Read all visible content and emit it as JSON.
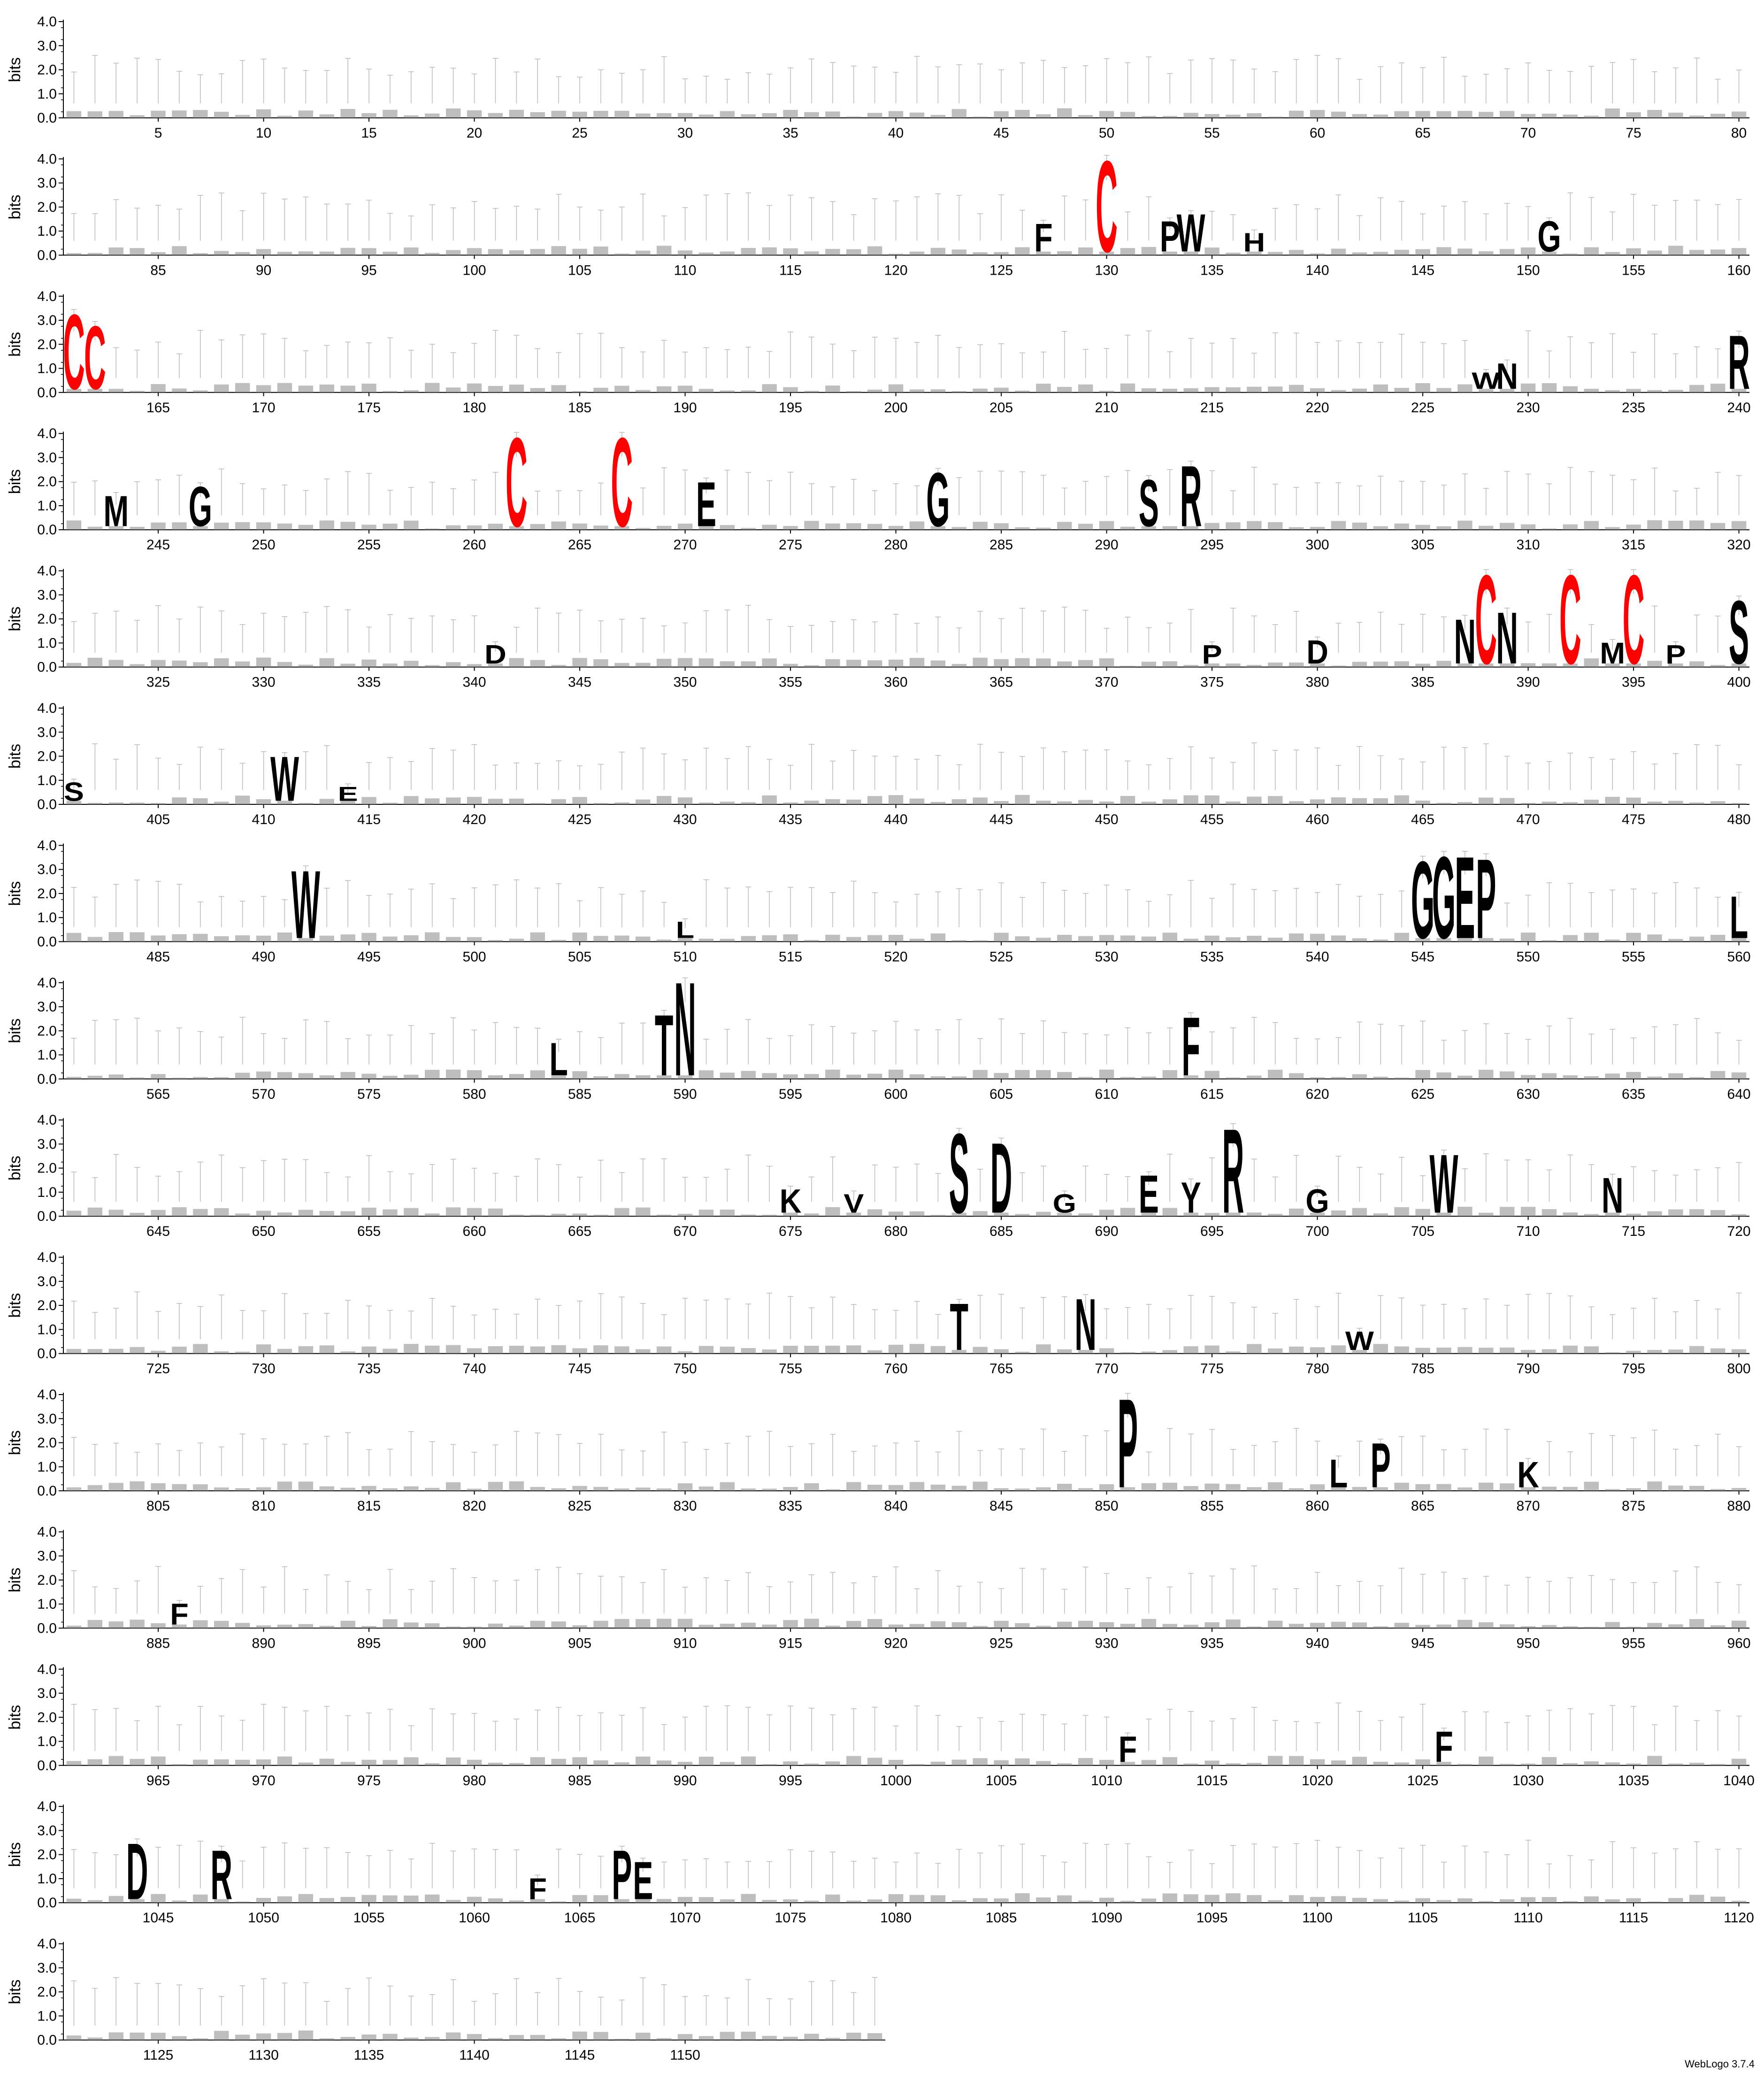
{
  "chart_data": {
    "type": "sequence-logo",
    "ylabel": "bits",
    "ylim": [
      0,
      4.0
    ],
    "yticks": [
      "0.0",
      "1.0",
      "2.0",
      "3.0",
      "4.0"
    ],
    "sequence_length": 1159,
    "positions_per_row": 80,
    "xtick_step": 5,
    "rows": [
      {
        "start": 1,
        "end": 80,
        "xticks": [
          5,
          10,
          15,
          20,
          25,
          30,
          35,
          40,
          45,
          50,
          55,
          60,
          65,
          70,
          75,
          80
        ]
      },
      {
        "start": 81,
        "end": 160,
        "xticks": [
          85,
          90,
          95,
          100,
          105,
          110,
          115,
          120,
          125,
          130,
          135,
          140,
          145,
          150,
          155,
          160
        ]
      },
      {
        "start": 161,
        "end": 240,
        "xticks": [
          165,
          170,
          175,
          180,
          185,
          190,
          195,
          200,
          205,
          210,
          215,
          220,
          225,
          230,
          235,
          240
        ]
      },
      {
        "start": 241,
        "end": 320,
        "xticks": [
          245,
          250,
          255,
          260,
          265,
          270,
          275,
          280,
          285,
          290,
          295,
          300,
          305,
          310,
          315,
          320
        ]
      },
      {
        "start": 321,
        "end": 400,
        "xticks": [
          325,
          330,
          335,
          340,
          345,
          350,
          355,
          360,
          365,
          370,
          375,
          380,
          385,
          390,
          395,
          400
        ]
      },
      {
        "start": 401,
        "end": 480,
        "xticks": [
          405,
          410,
          415,
          420,
          425,
          430,
          435,
          440,
          445,
          450,
          455,
          460,
          465,
          470,
          475,
          480
        ]
      },
      {
        "start": 481,
        "end": 560,
        "xticks": [
          485,
          490,
          495,
          500,
          505,
          510,
          515,
          520,
          525,
          530,
          535,
          540,
          545,
          550,
          555,
          560
        ]
      },
      {
        "start": 561,
        "end": 640,
        "xticks": [
          565,
          570,
          575,
          580,
          585,
          590,
          595,
          600,
          605,
          610,
          615,
          620,
          625,
          630,
          635,
          640
        ]
      },
      {
        "start": 641,
        "end": 720,
        "xticks": [
          645,
          650,
          655,
          660,
          665,
          670,
          675,
          680,
          685,
          690,
          695,
          700,
          705,
          710,
          715,
          720
        ]
      },
      {
        "start": 721,
        "end": 800,
        "xticks": [
          725,
          730,
          735,
          740,
          745,
          750,
          755,
          760,
          765,
          770,
          775,
          780,
          785,
          790,
          795,
          800
        ]
      },
      {
        "start": 801,
        "end": 880,
        "xticks": [
          805,
          810,
          815,
          820,
          825,
          830,
          835,
          840,
          845,
          850,
          855,
          860,
          865,
          870,
          875,
          880
        ]
      },
      {
        "start": 881,
        "end": 960,
        "xticks": [
          885,
          890,
          895,
          900,
          905,
          910,
          915,
          920,
          925,
          930,
          935,
          940,
          945,
          950,
          955,
          960
        ]
      },
      {
        "start": 961,
        "end": 1040,
        "xticks": [
          965,
          970,
          975,
          980,
          985,
          990,
          995,
          1000,
          1005,
          1010,
          1015,
          1020,
          1025,
          1030,
          1035,
          1040
        ]
      },
      {
        "start": 1041,
        "end": 1120,
        "xticks": [
          1045,
          1050,
          1055,
          1060,
          1065,
          1070,
          1075,
          1080,
          1085,
          1090,
          1095,
          1100,
          1105,
          1110,
          1115,
          1120
        ]
      },
      {
        "start": 1121,
        "end": 1159,
        "xticks": [
          1125,
          1130,
          1135,
          1140,
          1145,
          1150
        ]
      }
    ],
    "prominent_residues": [
      {
        "pos": 127,
        "letter": "F",
        "bits": 1.2,
        "color": "#000000"
      },
      {
        "pos": 130,
        "letter": "C",
        "bits": 3.9,
        "color": "#ff0000"
      },
      {
        "pos": 133,
        "letter": "P",
        "bits": 1.3,
        "color": "#000000"
      },
      {
        "pos": 134,
        "letter": "W",
        "bits": 1.6,
        "color": "#000000"
      },
      {
        "pos": 137,
        "letter": "H",
        "bits": 0.8,
        "color": "#000000"
      },
      {
        "pos": 151,
        "letter": "G",
        "bits": 1.3,
        "color": "#000000"
      },
      {
        "pos": 161,
        "letter": "C",
        "bits": 3.2,
        "color": "#ff0000"
      },
      {
        "pos": 162,
        "letter": "C",
        "bits": 2.7,
        "color": "#ff0000"
      },
      {
        "pos": 228,
        "letter": "W",
        "bits": 0.7,
        "color": "#000000"
      },
      {
        "pos": 229,
        "letter": "N",
        "bits": 1.1,
        "color": "#000000"
      },
      {
        "pos": 240,
        "letter": "R",
        "bits": 2.3,
        "color": "#000000"
      },
      {
        "pos": 243,
        "letter": "M",
        "bits": 1.3,
        "color": "#000000"
      },
      {
        "pos": 247,
        "letter": "G",
        "bits": 1.7,
        "color": "#000000"
      },
      {
        "pos": 262,
        "letter": "C",
        "bits": 3.8,
        "color": "#ff0000"
      },
      {
        "pos": 267,
        "letter": "C",
        "bits": 3.8,
        "color": "#ff0000"
      },
      {
        "pos": 271,
        "letter": "E",
        "bits": 1.9,
        "color": "#000000"
      },
      {
        "pos": 282,
        "letter": "G",
        "bits": 2.3,
        "color": "#000000"
      },
      {
        "pos": 292,
        "letter": "S",
        "bits": 2.0,
        "color": "#000000"
      },
      {
        "pos": 294,
        "letter": "R",
        "bits": 2.6,
        "color": "#000000"
      },
      {
        "pos": 341,
        "letter": "D",
        "bits": 0.8,
        "color": "#000000"
      },
      {
        "pos": 375,
        "letter": "P",
        "bits": 0.8,
        "color": "#000000"
      },
      {
        "pos": 380,
        "letter": "D",
        "bits": 1.0,
        "color": "#000000"
      },
      {
        "pos": 387,
        "letter": "N",
        "bits": 1.9,
        "color": "#000000"
      },
      {
        "pos": 388,
        "letter": "C",
        "bits": 3.8,
        "color": "#ff0000"
      },
      {
        "pos": 389,
        "letter": "N",
        "bits": 2.2,
        "color": "#000000"
      },
      {
        "pos": 392,
        "letter": "C",
        "bits": 3.8,
        "color": "#ff0000"
      },
      {
        "pos": 394,
        "letter": "M",
        "bits": 0.9,
        "color": "#000000"
      },
      {
        "pos": 395,
        "letter": "C",
        "bits": 3.8,
        "color": "#ff0000"
      },
      {
        "pos": 397,
        "letter": "P",
        "bits": 0.8,
        "color": "#000000"
      },
      {
        "pos": 400,
        "letter": "S",
        "bits": 2.7,
        "color": "#000000"
      },
      {
        "pos": 401,
        "letter": "S",
        "bits": 0.8,
        "color": "#000000"
      },
      {
        "pos": 411,
        "letter": "W",
        "bits": 1.9,
        "color": "#000000"
      },
      {
        "pos": 414,
        "letter": "E",
        "bits": 0.6,
        "color": "#000000"
      },
      {
        "pos": 492,
        "letter": "W",
        "bits": 2.9,
        "color": "#000000"
      },
      {
        "pos": 510,
        "letter": "L",
        "bits": 0.7,
        "color": "#000000"
      },
      {
        "pos": 545,
        "letter": "G",
        "bits": 3.3,
        "color": "#000000"
      },
      {
        "pos": 546,
        "letter": "G",
        "bits": 3.5,
        "color": "#000000"
      },
      {
        "pos": 547,
        "letter": "E",
        "bits": 3.5,
        "color": "#000000"
      },
      {
        "pos": 548,
        "letter": "P",
        "bits": 3.4,
        "color": "#000000"
      },
      {
        "pos": 560,
        "letter": "L",
        "bits": 1.8,
        "color": "#000000"
      },
      {
        "pos": 584,
        "letter": "L",
        "bits": 1.4,
        "color": "#000000"
      },
      {
        "pos": 589,
        "letter": "T",
        "bits": 2.6,
        "color": "#000000"
      },
      {
        "pos": 590,
        "letter": "N",
        "bits": 4.0,
        "color": "#000000"
      },
      {
        "pos": 614,
        "letter": "F",
        "bits": 2.5,
        "color": "#000000"
      },
      {
        "pos": 675,
        "letter": "K",
        "bits": 1.0,
        "color": "#000000"
      },
      {
        "pos": 678,
        "letter": "V",
        "bits": 0.8,
        "color": "#000000"
      },
      {
        "pos": 683,
        "letter": "S",
        "bits": 3.4,
        "color": "#000000"
      },
      {
        "pos": 685,
        "letter": "D",
        "bits": 3.0,
        "color": "#000000"
      },
      {
        "pos": 688,
        "letter": "G",
        "bits": 0.8,
        "color": "#000000"
      },
      {
        "pos": 692,
        "letter": "E",
        "bits": 1.6,
        "color": "#000000"
      },
      {
        "pos": 694,
        "letter": "Y",
        "bits": 1.3,
        "color": "#000000"
      },
      {
        "pos": 696,
        "letter": "R",
        "bits": 3.6,
        "color": "#000000"
      },
      {
        "pos": 700,
        "letter": "G",
        "bits": 1.0,
        "color": "#000000"
      },
      {
        "pos": 706,
        "letter": "W",
        "bits": 2.5,
        "color": "#000000"
      },
      {
        "pos": 714,
        "letter": "N",
        "bits": 1.5,
        "color": "#000000"
      },
      {
        "pos": 763,
        "letter": "T",
        "bits": 2.0,
        "color": "#000000"
      },
      {
        "pos": 769,
        "letter": "N",
        "bits": 2.2,
        "color": "#000000"
      },
      {
        "pos": 782,
        "letter": "W",
        "bits": 0.8,
        "color": "#000000"
      },
      {
        "pos": 851,
        "letter": "P",
        "bits": 3.8,
        "color": "#000000"
      },
      {
        "pos": 861,
        "letter": "L",
        "bits": 1.2,
        "color": "#000000"
      },
      {
        "pos": 863,
        "letter": "P",
        "bits": 1.9,
        "color": "#000000"
      },
      {
        "pos": 870,
        "letter": "K",
        "bits": 1.1,
        "color": "#000000"
      },
      {
        "pos": 886,
        "letter": "F",
        "bits": 0.9,
        "color": "#000000"
      },
      {
        "pos": 1011,
        "letter": "F",
        "bits": 1.1,
        "color": "#000000"
      },
      {
        "pos": 1026,
        "letter": "F",
        "bits": 1.3,
        "color": "#000000"
      },
      {
        "pos": 1044,
        "letter": "D",
        "bits": 2.4,
        "color": "#000000"
      },
      {
        "pos": 1048,
        "letter": "R",
        "bits": 2.1,
        "color": "#000000"
      },
      {
        "pos": 1063,
        "letter": "F",
        "bits": 0.9,
        "color": "#000000"
      },
      {
        "pos": 1067,
        "letter": "P",
        "bits": 2.1,
        "color": "#000000"
      },
      {
        "pos": 1068,
        "letter": "E",
        "bits": 1.6,
        "color": "#000000"
      }
    ]
  },
  "footer": {
    "credit": "WebLogo 3.7.4"
  },
  "colors": {
    "cysteine": "#ff0000",
    "default": "#000000",
    "errorbar": "#bbbbbb",
    "background_residue": "#888888"
  }
}
